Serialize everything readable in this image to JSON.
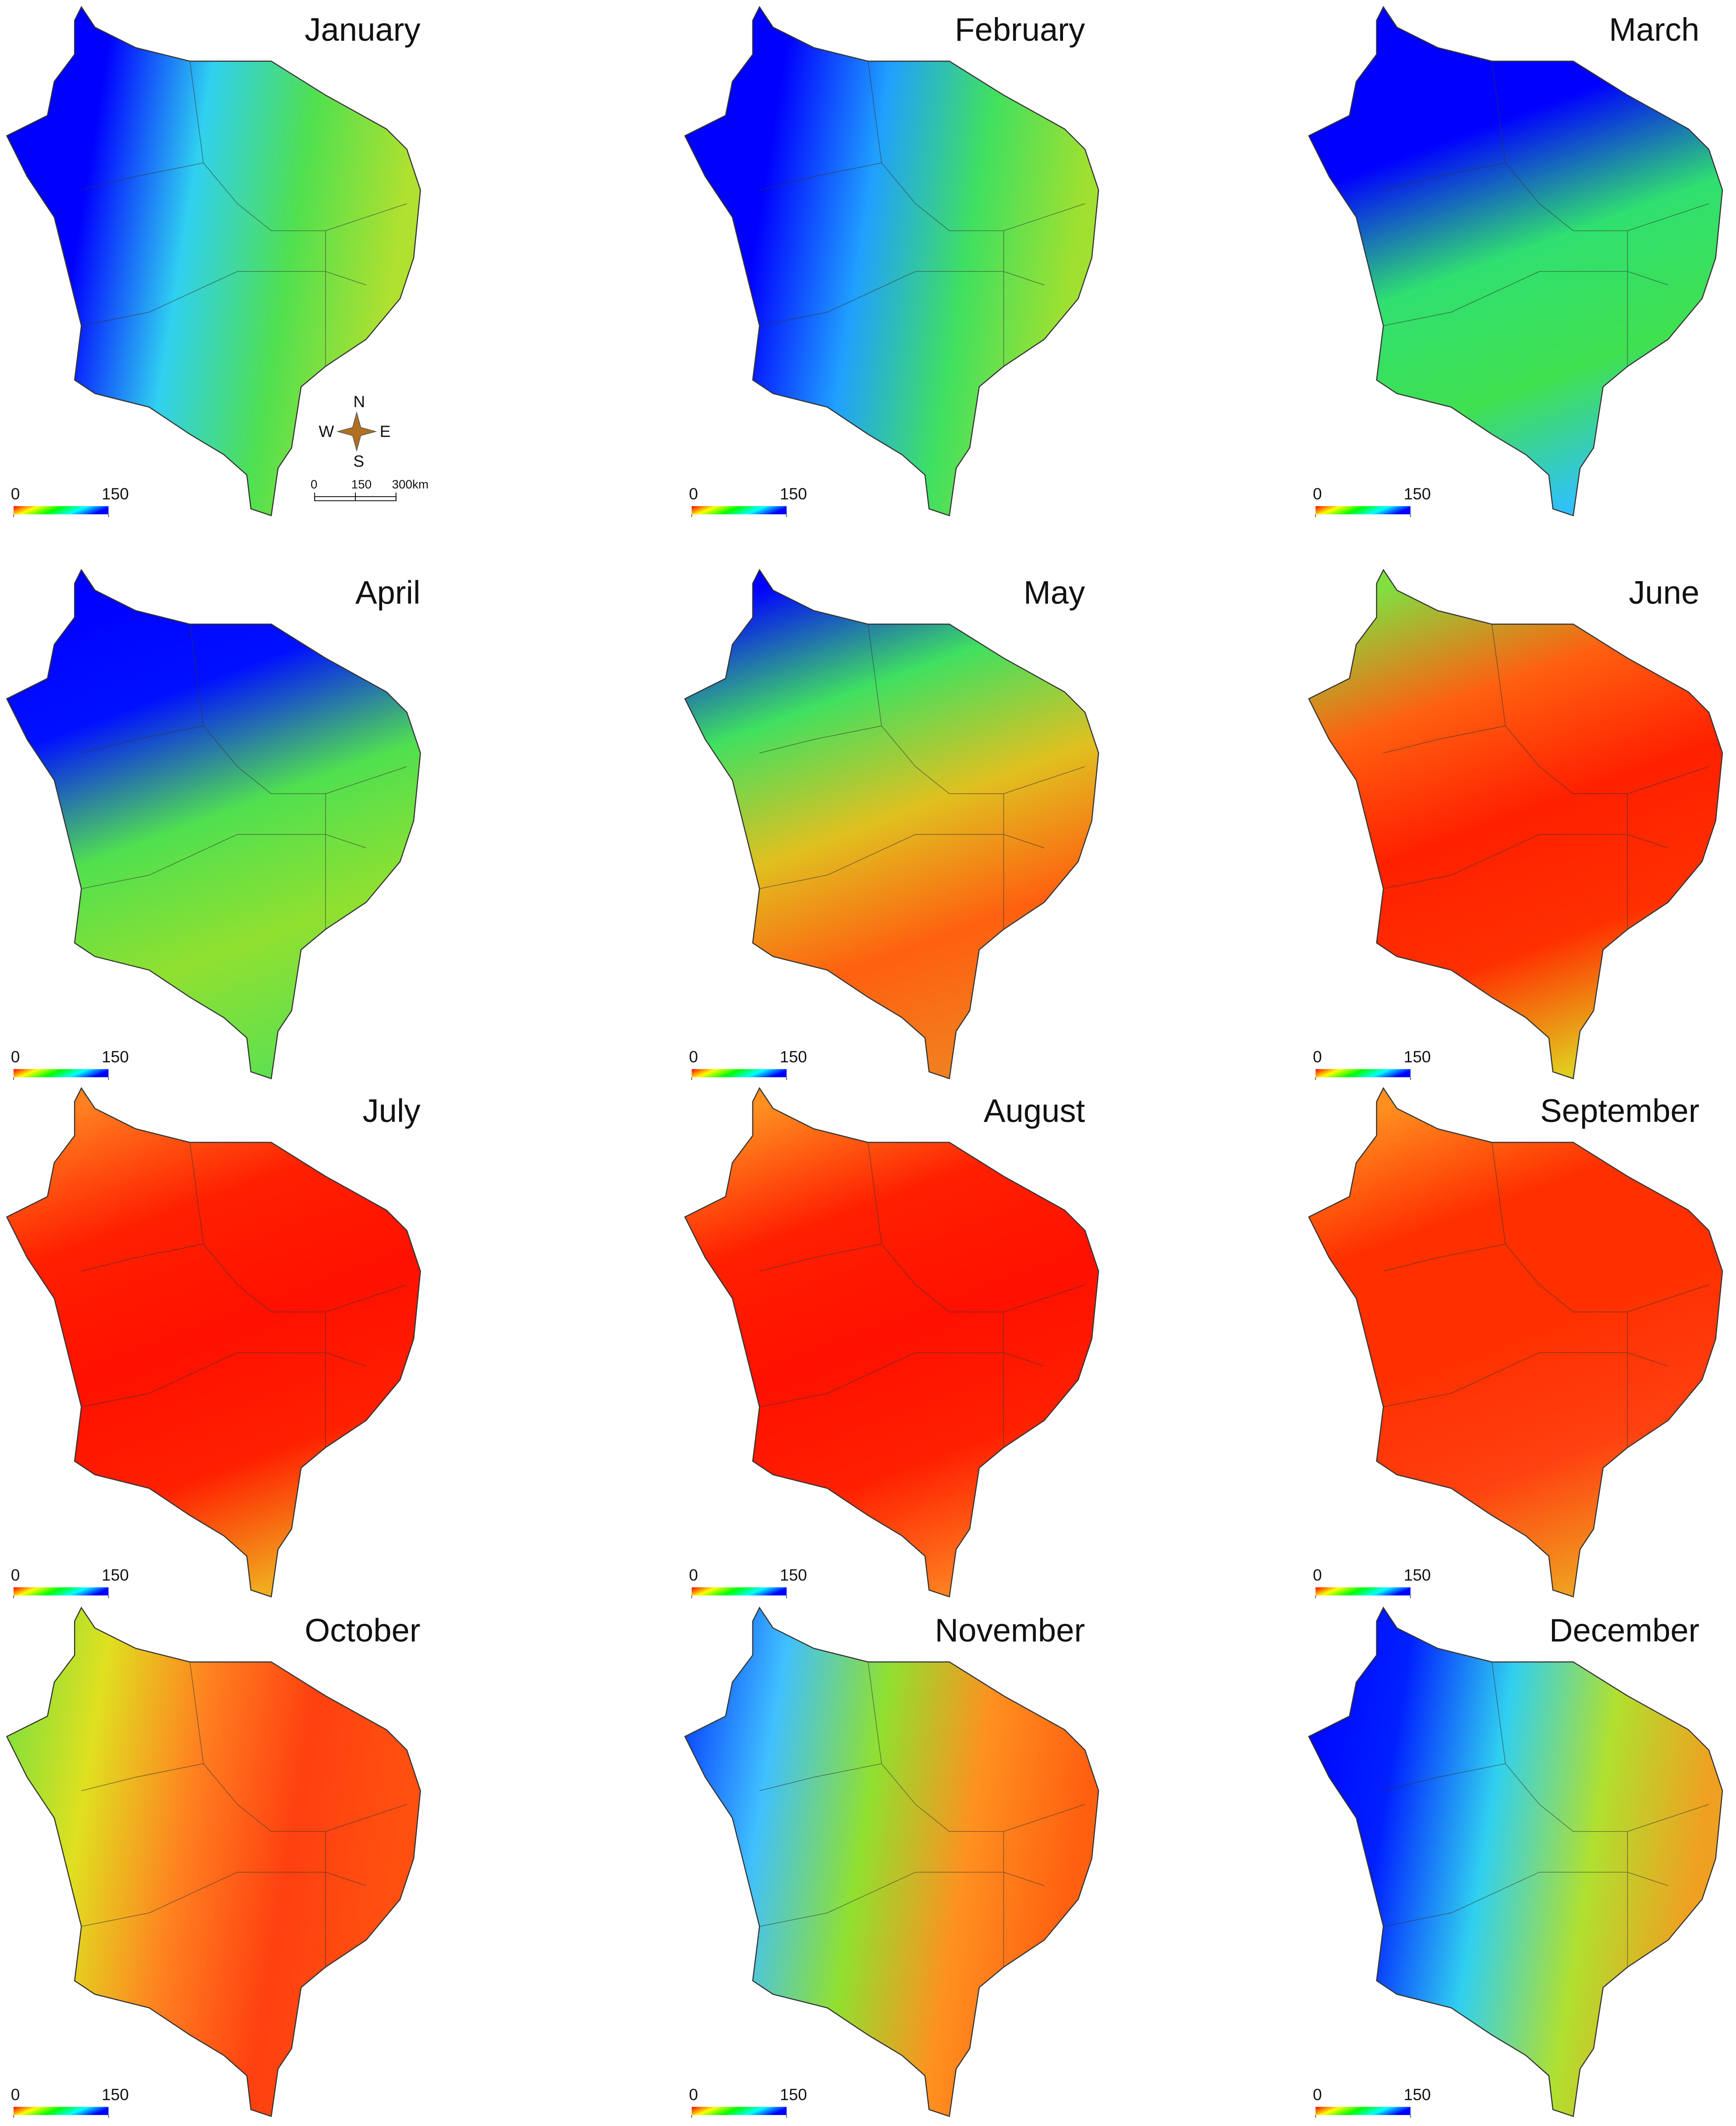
{
  "maps": [
    {
      "title": "January",
      "fill_direction": "west-east",
      "colors": [
        "#0000ff",
        "#0000ff",
        "#30d0f0",
        "#50e050",
        "#b0e030"
      ],
      "legend": {
        "ticks": [
          0,
          150
        ]
      }
    },
    {
      "title": "February",
      "fill_direction": "west-east",
      "colors": [
        "#0000ff",
        "#0000ff",
        "#20a0ff",
        "#40e060",
        "#a0e030"
      ],
      "legend": {
        "ticks": [
          0,
          150
        ]
      }
    },
    {
      "title": "March",
      "fill_direction": "north-south",
      "colors": [
        "#0000ff",
        "#0000ff",
        "#30e070",
        "#40e050",
        "#30c0ff"
      ],
      "legend": {
        "ticks": [
          0,
          150
        ]
      }
    },
    {
      "title": "April",
      "fill_direction": "north-south",
      "colors": [
        "#0000ff",
        "#0010ff",
        "#50e050",
        "#90e030",
        "#60e050"
      ],
      "legend": {
        "ticks": [
          0,
          150
        ]
      }
    },
    {
      "title": "May",
      "fill_direction": "north-south",
      "colors": [
        "#0000ff",
        "#40e060",
        "#e0c020",
        "#ff6010",
        "#f08020"
      ],
      "legend": {
        "ticks": [
          0,
          150
        ]
      }
    },
    {
      "title": "June",
      "fill_direction": "north-south",
      "colors": [
        "#80e040",
        "#ff6010",
        "#ff2000",
        "#ff3000",
        "#e0d020"
      ],
      "legend": {
        "ticks": [
          0,
          150
        ]
      }
    },
    {
      "title": "July",
      "fill_direction": "north-south",
      "colors": [
        "#ff8020",
        "#ff2000",
        "#ff1000",
        "#ff2000",
        "#f0b020"
      ],
      "legend": {
        "ticks": [
          0,
          150
        ]
      }
    },
    {
      "title": "August",
      "fill_direction": "north-south",
      "colors": [
        "#ff9020",
        "#ff2000",
        "#ff1000",
        "#ff2000",
        "#ff8020"
      ],
      "legend": {
        "ticks": [
          0,
          150
        ]
      }
    },
    {
      "title": "September",
      "fill_direction": "north-south",
      "colors": [
        "#ff9020",
        "#ff3000",
        "#ff3000",
        "#ff4010",
        "#f0a020"
      ],
      "legend": {
        "ticks": [
          0,
          150
        ]
      }
    },
    {
      "title": "October",
      "fill_direction": "west-east",
      "colors": [
        "#70e040",
        "#e0e020",
        "#ff8020",
        "#ff4010",
        "#ff5010"
      ],
      "legend": {
        "ticks": [
          0,
          150
        ]
      }
    },
    {
      "title": "November",
      "fill_direction": "west-east",
      "colors": [
        "#0030ff",
        "#40c0ff",
        "#90e030",
        "#ff9020",
        "#ff6010"
      ],
      "legend": {
        "ticks": [
          0,
          150
        ]
      }
    },
    {
      "title": "December",
      "fill_direction": "west-east",
      "colors": [
        "#0000ff",
        "#0020ff",
        "#30d0f0",
        "#b0e030",
        "#f0a020"
      ],
      "legend": {
        "ticks": [
          0,
          150
        ]
      }
    }
  ],
  "legend_colors": [
    "#ff0000",
    "#ffff00",
    "#00ff00",
    "#00ffff",
    "#0000ff"
  ],
  "compass": {
    "north": "N",
    "east": "E",
    "south": "S",
    "west": "W"
  },
  "scale_bar": {
    "ticks": [
      0,
      150,
      {
        "value": 300,
        "label": "300km"
      }
    ]
  }
}
